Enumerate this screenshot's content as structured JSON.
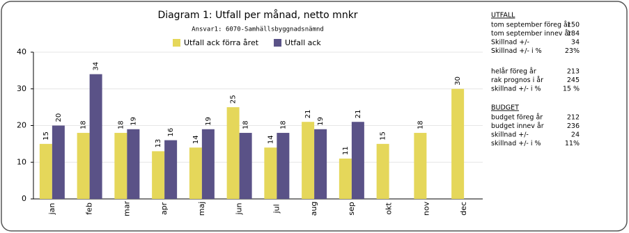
{
  "chart_data": {
    "type": "bar",
    "title": "Diagram 1: Utfall per månad, netto mnkr",
    "subtitle": "Ansvar1: 6070-Samhällsbyggnadsnämnd",
    "categories": [
      "jan",
      "feb",
      "mar",
      "apr",
      "maj",
      "jun",
      "jul",
      "aug",
      "sep",
      "okt",
      "nov",
      "dec"
    ],
    "series": [
      {
        "name": "Utfall ack förra året",
        "color": "#e5d75a",
        "values": [
          15,
          18,
          18,
          13,
          14,
          25,
          14,
          21,
          11,
          15,
          18,
          30
        ]
      },
      {
        "name": "Utfall ack",
        "color": "#5a5287",
        "values": [
          20,
          34,
          19,
          16,
          19,
          18,
          18,
          19,
          21,
          null,
          null,
          null
        ]
      }
    ],
    "ylim": [
      0,
      40
    ],
    "yticks": [
      0,
      10,
      20,
      30,
      40
    ],
    "grid": true
  },
  "side_panel": [
    {
      "heading": "UTFALL",
      "rows": [
        [
          "tom  september föreg år",
          150
        ],
        [
          "tom  september innev år",
          184
        ],
        [
          "Skillnad +/-",
          34
        ],
        [
          "Skillnad +/- i %",
          "23%"
        ]
      ]
    },
    {
      "rows": [
        [
          "helår föreg år",
          213
        ],
        [
          "rak prognos i år",
          245
        ],
        [
          "skillnad +/- i %",
          "15 %"
        ]
      ]
    },
    {
      "heading": "BUDGET",
      "rows": [
        [
          "budget föreg år",
          212
        ],
        [
          "budget innev år",
          236
        ],
        [
          "skillnad +/-",
          24
        ],
        [
          "skillnad +/- i %",
          "11%"
        ]
      ]
    }
  ]
}
